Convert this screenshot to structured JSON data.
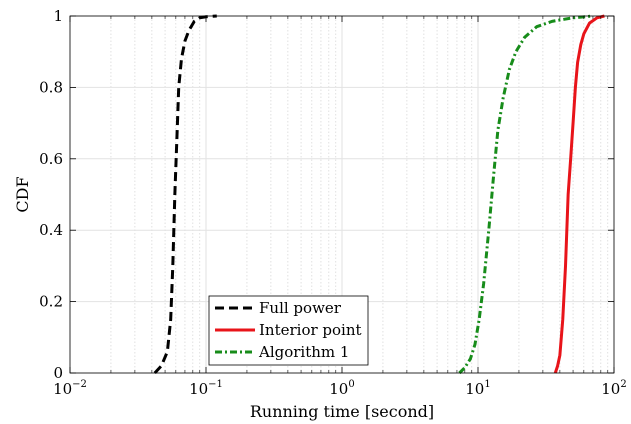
{
  "chart_data": {
    "type": "line",
    "title": "",
    "xlabel": "Running time [second]",
    "ylabel": "CDF",
    "xscale": "log",
    "xlim": [
      0.01,
      100
    ],
    "ylim": [
      0,
      1
    ],
    "grid": true,
    "legend_position": "bottom-left",
    "x_ticks": [
      {
        "value": 0.01,
        "base": "10",
        "exp": "−2"
      },
      {
        "value": 0.1,
        "base": "10",
        "exp": "−1"
      },
      {
        "value": 1,
        "base": "10",
        "exp": "0"
      },
      {
        "value": 10,
        "base": "10",
        "exp": "1"
      },
      {
        "value": 100,
        "base": "10",
        "exp": "2"
      }
    ],
    "y_ticks": [
      {
        "value": 0,
        "label": "0"
      },
      {
        "value": 0.2,
        "label": "0.2"
      },
      {
        "value": 0.4,
        "label": "0.4"
      },
      {
        "value": 0.6,
        "label": "0.6"
      },
      {
        "value": 0.8,
        "label": "0.8"
      },
      {
        "value": 1,
        "label": "1"
      }
    ],
    "series": [
      {
        "name": "Full power",
        "color": "#000000",
        "style": "dashed",
        "points": [
          [
            0.042,
            0
          ],
          [
            0.047,
            0.02
          ],
          [
            0.052,
            0.06
          ],
          [
            0.055,
            0.15
          ],
          [
            0.057,
            0.3
          ],
          [
            0.059,
            0.5
          ],
          [
            0.061,
            0.65
          ],
          [
            0.063,
            0.8
          ],
          [
            0.066,
            0.88
          ],
          [
            0.07,
            0.93
          ],
          [
            0.075,
            0.96
          ],
          [
            0.082,
            0.985
          ],
          [
            0.09,
            0.995
          ],
          [
            0.1,
            0.998
          ],
          [
            0.12,
            1
          ]
        ]
      },
      {
        "name": "Interior point",
        "color": "#e8141a",
        "style": "solid",
        "points": [
          [
            37,
            0
          ],
          [
            38.5,
            0.02
          ],
          [
            40,
            0.05
          ],
          [
            42,
            0.15
          ],
          [
            44,
            0.3
          ],
          [
            46,
            0.5
          ],
          [
            48,
            0.6
          ],
          [
            50,
            0.7
          ],
          [
            52,
            0.8
          ],
          [
            54,
            0.87
          ],
          [
            57,
            0.92
          ],
          [
            60,
            0.95
          ],
          [
            66,
            0.98
          ],
          [
            75,
            0.995
          ],
          [
            85,
            1
          ]
        ]
      },
      {
        "name": "Algorithm 1",
        "color": "#178c1a",
        "style": "dashdot",
        "points": [
          [
            7.3,
            0
          ],
          [
            8,
            0.015
          ],
          [
            8.8,
            0.04
          ],
          [
            9.5,
            0.08
          ],
          [
            10.2,
            0.15
          ],
          [
            11,
            0.25
          ],
          [
            12,
            0.4
          ],
          [
            13,
            0.55
          ],
          [
            14,
            0.68
          ],
          [
            15.3,
            0.77
          ],
          [
            17,
            0.85
          ],
          [
            19,
            0.9
          ],
          [
            22,
            0.94
          ],
          [
            27,
            0.97
          ],
          [
            35,
            0.985
          ],
          [
            50,
            0.995
          ],
          [
            70,
            1
          ]
        ]
      }
    ]
  }
}
